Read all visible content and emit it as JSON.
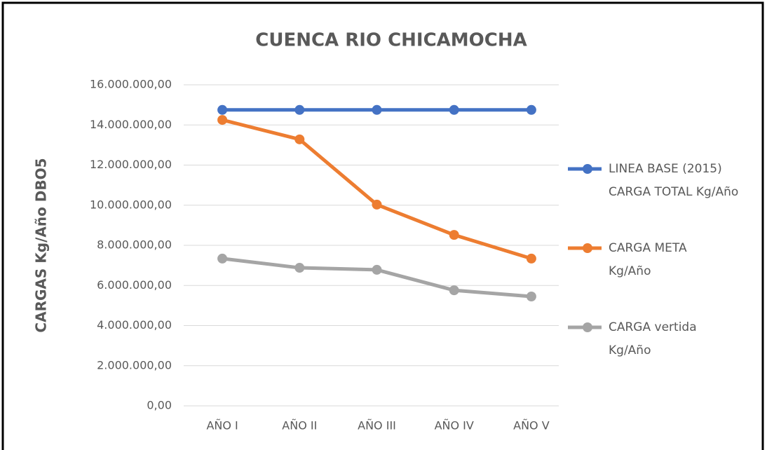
{
  "chart_data": {
    "type": "line",
    "title": "CUENCA RIO CHICAMOCHA",
    "y_label": "CARGAS  Kg/Año DBO5",
    "categories": [
      "AÑO I",
      "AÑO II",
      "AÑO III",
      "AÑO IV",
      "AÑO V"
    ],
    "series": [
      {
        "name": "LINEA BASE (2015)\nCARGA TOTAL Kg/Año",
        "color": "#4472c4",
        "values": [
          14750000,
          14750000,
          14750000,
          14750000,
          14750000
        ]
      },
      {
        "name": "CARGA META\nKg/Año",
        "color": "#ed7d31",
        "values": [
          14250000,
          13280000,
          10030000,
          8520000,
          7340000
        ]
      },
      {
        "name": "CARGA vertida\nKg/Año",
        "color": "#a5a5a5",
        "values": [
          7340000,
          6880000,
          6780000,
          5760000,
          5450000
        ]
      }
    ],
    "ylim": [
      0,
      16000000
    ],
    "yticks": [
      {
        "value": 0,
        "label": "0,00"
      },
      {
        "value": 2000000,
        "label": "2.000.000,00"
      },
      {
        "value": 4000000,
        "label": "4.000.000,00"
      },
      {
        "value": 6000000,
        "label": "6.000.000,00"
      },
      {
        "value": 8000000,
        "label": "8.000.000,00"
      },
      {
        "value": 10000000,
        "label": "10.000.000,00"
      },
      {
        "value": 12000000,
        "label": "12.000.000,00"
      },
      {
        "value": 14000000,
        "label": "14.000.000,00"
      },
      {
        "value": 16000000,
        "label": "16.000.000,00"
      }
    ],
    "grid": true,
    "legend": "right"
  }
}
